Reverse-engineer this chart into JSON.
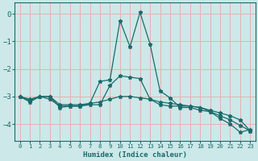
{
  "xlabel": "Humidex (Indice chaleur)",
  "ylabel": "",
  "background_color": "#cce8e8",
  "grid_color": "#e8b0b0",
  "line_color": "#1a6b6b",
  "xlim": [
    -0.5,
    23.5
  ],
  "ylim": [
    -4.6,
    0.4
  ],
  "xticks": [
    0,
    1,
    2,
    3,
    4,
    5,
    6,
    7,
    8,
    9,
    10,
    11,
    12,
    13,
    14,
    15,
    16,
    17,
    18,
    19,
    20,
    21,
    22,
    23
  ],
  "yticks": [
    0,
    -1,
    -2,
    -3,
    -4
  ],
  "series": [
    {
      "x": [
        0,
        1,
        2,
        3,
        4,
        5,
        6,
        7,
        8,
        9,
        10,
        11,
        12,
        13,
        14,
        15,
        16,
        17,
        18,
        19,
        20,
        21,
        22,
        23
      ],
      "y": [
        -3.0,
        -3.1,
        -3.0,
        -3.0,
        -3.4,
        -3.35,
        -3.35,
        -3.25,
        -2.45,
        -2.4,
        -0.25,
        -1.2,
        0.05,
        -1.1,
        -2.8,
        -3.05,
        -3.4,
        -3.4,
        -3.5,
        -3.55,
        -3.8,
        -4.0,
        -4.3,
        -4.2
      ]
    },
    {
      "x": [
        0,
        1,
        2,
        3,
        4,
        5,
        6,
        7,
        8,
        9,
        10,
        11,
        12,
        13,
        14,
        15,
        16,
        17,
        18,
        19,
        20,
        21,
        22,
        23
      ],
      "y": [
        -3.0,
        -3.2,
        -3.0,
        -3.1,
        -3.35,
        -3.35,
        -3.35,
        -3.3,
        -3.3,
        -2.6,
        -2.25,
        -2.3,
        -2.35,
        -3.1,
        -3.3,
        -3.35,
        -3.35,
        -3.35,
        -3.4,
        -3.55,
        -3.7,
        -3.85,
        -4.05,
        -4.25
      ]
    },
    {
      "x": [
        0,
        1,
        2,
        3,
        4,
        5,
        6,
        7,
        8,
        9,
        10,
        11,
        12,
        13,
        14,
        15,
        16,
        17,
        18,
        19,
        20,
        21,
        22,
        23
      ],
      "y": [
        -3.0,
        -3.15,
        -3.0,
        -3.0,
        -3.3,
        -3.3,
        -3.3,
        -3.25,
        -3.2,
        -3.1,
        -3.0,
        -3.0,
        -3.05,
        -3.1,
        -3.2,
        -3.25,
        -3.3,
        -3.35,
        -3.4,
        -3.5,
        -3.6,
        -3.7,
        -3.85,
        -4.25
      ]
    }
  ]
}
